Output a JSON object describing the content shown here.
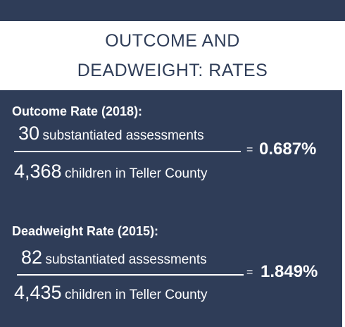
{
  "title": {
    "line1": "OUTCOME AND",
    "line2": "DEADWEIGHT: RATES"
  },
  "outcome": {
    "heading": "Outcome Rate (2018):",
    "numerator_value": "30",
    "numerator_text": "substantiated assessments",
    "denominator_value": "4,368",
    "denominator_text": "children in Teller County",
    "equals": "=",
    "result": "0.687%"
  },
  "deadweight": {
    "heading": "Deadweight Rate (2015):",
    "numerator_value": "82",
    "numerator_text": "substantiated assessments",
    "denominator_value": "4,435",
    "denominator_text": "children in Teller County",
    "equals": "=",
    "result": "1.849%"
  },
  "colors": {
    "navy": "#2f3d58",
    "white": "#ffffff"
  }
}
